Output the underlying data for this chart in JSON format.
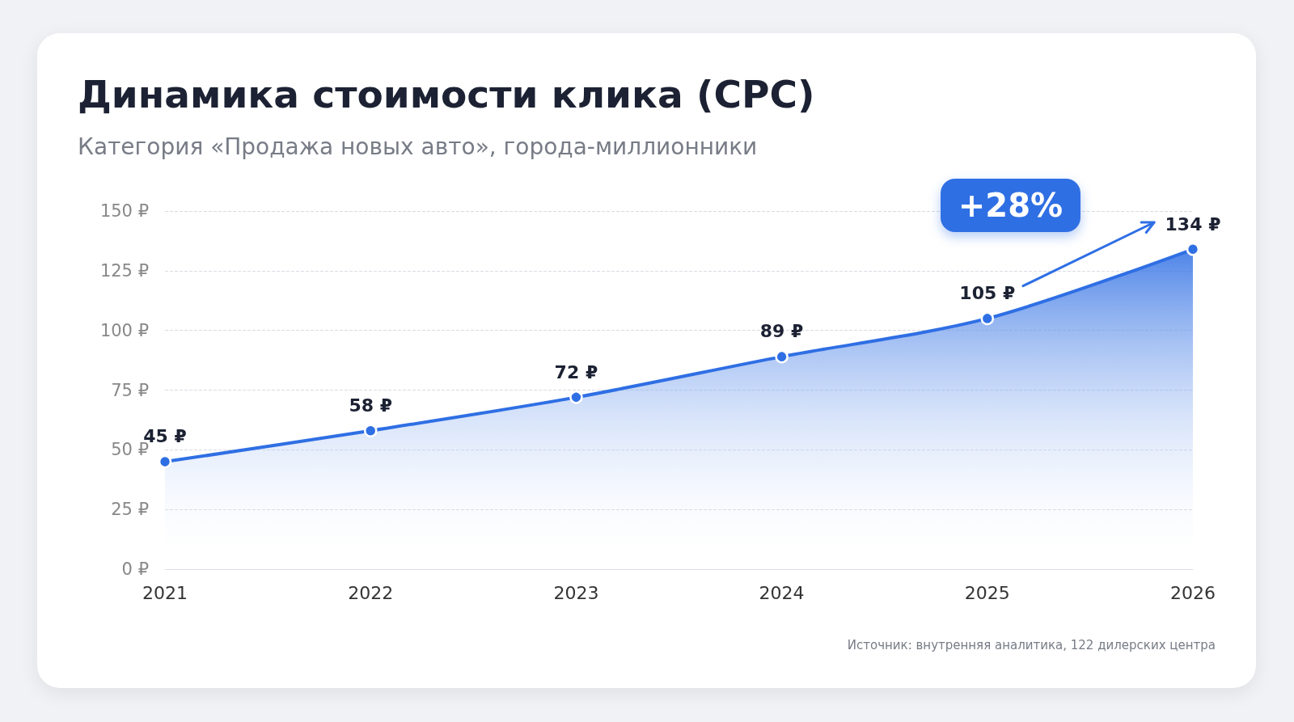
{
  "chart_data": {
    "type": "area",
    "title": "Динамика стоимости клика (CPC)",
    "subtitle": "Категория «Продажа новых авто», города-миллионники",
    "categories": [
      "2021",
      "2022",
      "2023",
      "2024",
      "2025",
      "2026"
    ],
    "series": [
      {
        "color": "#2f6fe4",
        "values": [
          45,
          58,
          72,
          89,
          105,
          134
        ],
        "value_labels": [
          "45 ₽",
          "58 ₽",
          "72 ₽",
          "89 ₽",
          "105 ₽",
          "134 ₽"
        ]
      }
    ],
    "ylim": [
      0,
      150
    ],
    "yticks": [
      {
        "value": 0,
        "label": "0 ₽"
      },
      {
        "value": 25,
        "label": "25 ₽"
      },
      {
        "value": 50,
        "label": "50 ₽"
      },
      {
        "value": 75,
        "label": "75 ₽"
      },
      {
        "value": 100,
        "label": "100 ₽"
      },
      {
        "value": 125,
        "label": "125 ₽"
      },
      {
        "value": 150,
        "label": "150 ₽"
      }
    ],
    "grid": "y",
    "marker": "circle",
    "line_style": "solid",
    "annotations": [
      "+28%",
      "Источник: внутренняя аналитика, 122 дилерских центра"
    ]
  }
}
